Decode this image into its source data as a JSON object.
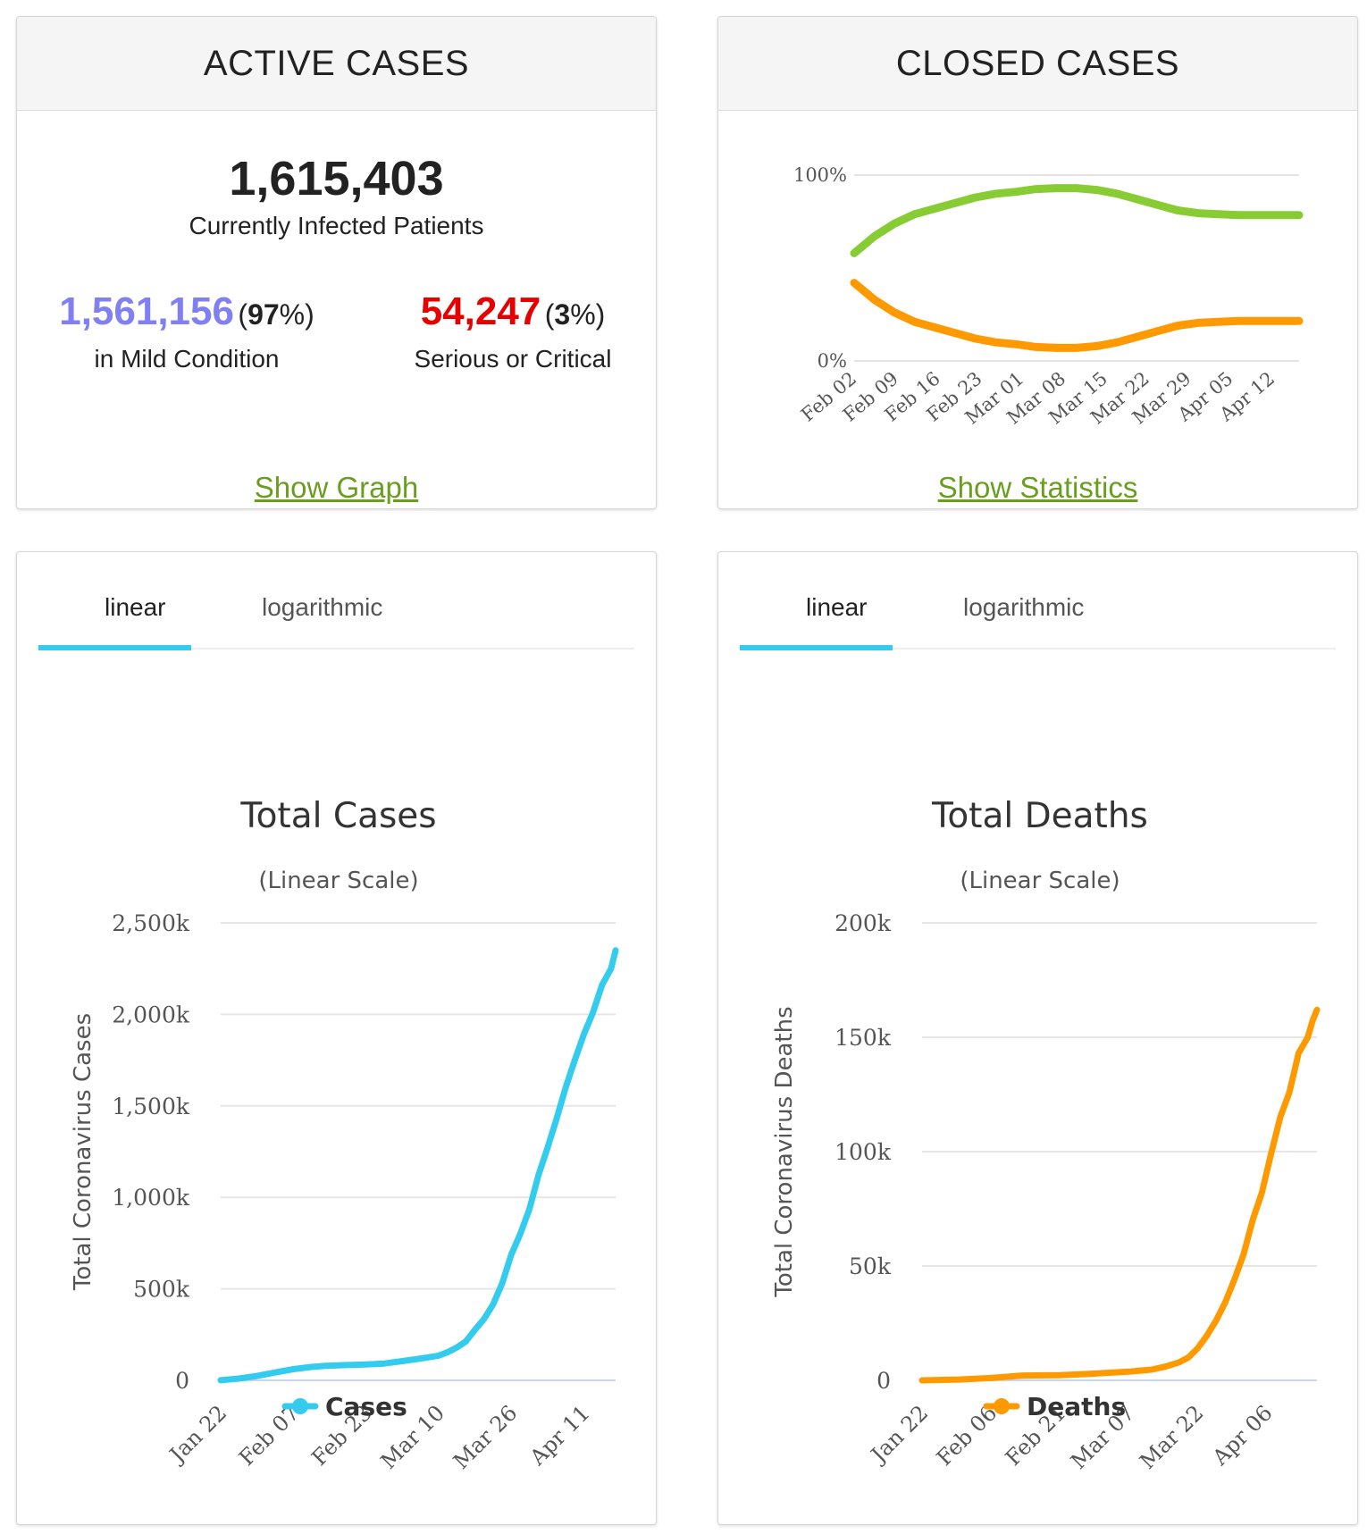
{
  "active_cases": {
    "header": "ACTIVE CASES",
    "total": "1,615,403",
    "total_label": "Currently Infected Patients",
    "mild_value": "1,561,156",
    "mild_pct_open": "(",
    "mild_pct": "97",
    "mild_pct_close": "%)",
    "mild_label": "in Mild Condition",
    "serious_value": "54,247",
    "serious_pct_open": "(",
    "serious_pct": "3",
    "serious_pct_close": "%)",
    "serious_label": "Serious or Critical",
    "link": "Show Graph",
    "colors": {
      "mild": "#8080f2",
      "serious": "#e60000",
      "link": "#6a9e1f"
    }
  },
  "closed_cases": {
    "header": "CLOSED CASES",
    "link": "Show Statistics"
  },
  "cases_panel": {
    "tabs": [
      "linear",
      "logarithmic"
    ],
    "active_tab": "linear"
  },
  "deaths_panel": {
    "tabs": [
      "linear",
      "logarithmic"
    ],
    "active_tab": "linear"
  },
  "chart_data": [
    {
      "type": "line",
      "title": "",
      "ylabel": "",
      "ylim": [
        0,
        100
      ],
      "ytick_labels": [
        "0%",
        "100%"
      ],
      "ytick_values": [
        0,
        100
      ],
      "categories": [
        "Feb 02",
        "Feb 09",
        "Feb 16",
        "Feb 23",
        "Mar 01",
        "Mar 08",
        "Mar 15",
        "Mar 22",
        "Mar 29",
        "Apr 05",
        "Apr 12"
      ],
      "x": [
        "Feb 02",
        "Feb 05",
        "Feb 09",
        "Feb 12",
        "Feb 16",
        "Feb 19",
        "Feb 23",
        "Feb 26",
        "Mar 01",
        "Mar 04",
        "Mar 08",
        "Mar 11",
        "Mar 15",
        "Mar 18",
        "Mar 22",
        "Mar 25",
        "Mar 29",
        "Apr 01",
        "Apr 05",
        "Apr 08",
        "Apr 12",
        "Apr 15",
        "Apr 19"
      ],
      "series": [
        {
          "color": "#88cc33",
          "values": [
            58,
            67,
            74,
            79,
            82,
            85,
            88,
            90,
            91,
            92.5,
            93,
            93,
            92,
            90,
            87,
            84,
            81,
            79.5,
            79,
            78.5,
            78.5,
            78.5,
            78.5
          ]
        },
        {
          "color": "#ff9900",
          "values": [
            42,
            33,
            26,
            21,
            18,
            15,
            12,
            10,
            9,
            7.5,
            7,
            7,
            8,
            10,
            13,
            16,
            19,
            20.5,
            21,
            21.5,
            21.5,
            21.5,
            21.5
          ]
        }
      ]
    },
    {
      "type": "line",
      "title": "Total Cases",
      "subtitle": "(Linear Scale)",
      "ylabel": "Total Coronavirus Cases",
      "ylim": [
        0,
        2500000
      ],
      "ytick_labels": [
        "0",
        "500k",
        "1,000k",
        "1,500k",
        "2,000k",
        "2,500k"
      ],
      "ytick_values": [
        0,
        500000,
        1000000,
        1500000,
        2000000,
        2500000
      ],
      "xtick_labels": [
        "Jan 22",
        "Feb 07",
        "Feb 23",
        "Mar 10",
        "Mar 26",
        "Apr 11"
      ],
      "xtick_days": [
        0,
        16,
        32,
        48,
        64,
        80
      ],
      "x_days": [
        0,
        4,
        8,
        12,
        16,
        20,
        21,
        23,
        27,
        32,
        36,
        40,
        44,
        48,
        50,
        52,
        54,
        56,
        58,
        60,
        62,
        64,
        66,
        68,
        70,
        72,
        74,
        76,
        78,
        80,
        82,
        84,
        86,
        87
      ],
      "series": [
        {
          "name": "Cases",
          "color": "#33ccee",
          "values": [
            580,
            9800,
            24000,
            43000,
            61000,
            73000,
            75000,
            79000,
            83000,
            87000,
            92000,
            105000,
            119000,
            135000,
            154000,
            179000,
            212000,
            276000,
            335000,
            414000,
            529000,
            685000,
            800000,
            935000,
            1120000,
            1270000,
            1430000,
            1600000,
            1750000,
            1890000,
            2010000,
            2160000,
            2250000,
            2350000
          ]
        }
      ]
    },
    {
      "type": "line",
      "title": "Total Deaths",
      "subtitle": "(Linear Scale)",
      "ylabel": "Total Coronavirus Deaths",
      "ylim": [
        0,
        200000
      ],
      "ytick_labels": [
        "0",
        "50k",
        "100k",
        "150k",
        "200k"
      ],
      "ytick_values": [
        0,
        50000,
        100000,
        150000,
        200000
      ],
      "xtick_labels": [
        "Jan 22",
        "Feb 06",
        "Feb 21",
        "Mar 07",
        "Mar 22",
        "Apr 06"
      ],
      "xtick_days": [
        0,
        15,
        30,
        45,
        60,
        75
      ],
      "x_days": [
        0,
        8,
        15,
        22,
        30,
        37,
        45,
        50,
        53,
        56,
        58,
        60,
        62,
        64,
        66,
        68,
        70,
        72,
        74,
        76,
        78,
        80,
        82,
        84,
        85,
        86
      ],
      "series": [
        {
          "name": "Deaths",
          "color": "#ff9900",
          "values": [
            17,
            360,
            1018,
            2100,
            2250,
            2900,
            3800,
            4700,
            6000,
            7900,
            10000,
            14000,
            19500,
            26000,
            34000,
            44000,
            55000,
            70000,
            82000,
            99000,
            115000,
            126000,
            143000,
            150000,
            157000,
            162000
          ]
        }
      ]
    }
  ]
}
